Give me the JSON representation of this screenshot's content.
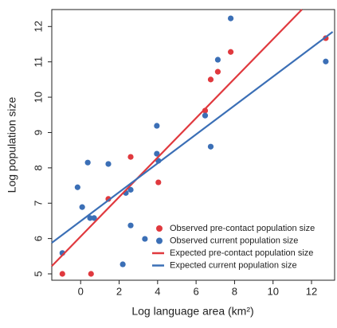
{
  "chart_data": {
    "type": "scatter",
    "xlabel": "Log language area (km²)",
    "ylabel": "Log population size",
    "xlim": [
      -1.5,
      13.2
    ],
    "ylim": [
      4.82,
      12.48
    ],
    "xticks": [
      0,
      2,
      4,
      6,
      8,
      10,
      12
    ],
    "yticks": [
      5,
      6,
      7,
      8,
      9,
      10,
      11,
      12
    ],
    "legend": "lower right",
    "series": [
      {
        "name": "Observed pre-contact population size",
        "color": "#e0393e",
        "type": "scatter",
        "x": [
          -0.95,
          0.54,
          1.44,
          2.6,
          4.04,
          6.47,
          6.76,
          7.13,
          7.8,
          12.74
        ],
        "values": [
          5.0,
          5.0,
          7.12,
          8.31,
          7.59,
          9.62,
          10.5,
          10.72,
          11.28,
          11.67
        ]
      },
      {
        "name": "Observed current population size",
        "color": "#3b6fb6",
        "type": "scatter",
        "x": [
          -0.95,
          -0.16,
          0.08,
          0.37,
          0.49,
          0.7,
          1.44,
          2.19,
          2.35,
          2.6,
          2.6,
          3.34,
          3.96,
          3.96,
          4.04,
          6.47,
          6.76,
          7.13,
          7.8,
          12.74
        ],
        "values": [
          5.59,
          7.45,
          6.89,
          8.15,
          6.58,
          6.58,
          8.11,
          5.27,
          7.29,
          7.38,
          6.37,
          5.99,
          9.19,
          8.4,
          8.2,
          9.48,
          8.6,
          11.06,
          12.23,
          11.01
        ]
      },
      {
        "name": "Expected pre-contact population size",
        "color": "#e0393e",
        "type": "line",
        "x": [
          -1.5,
          11.5
        ],
        "values": [
          5.22,
          12.48
        ]
      },
      {
        "name": "Expected current population size",
        "color": "#3b6fb6",
        "type": "line",
        "x": [
          -1.5,
          13.1
        ],
        "values": [
          5.88,
          11.85
        ]
      }
    ]
  }
}
